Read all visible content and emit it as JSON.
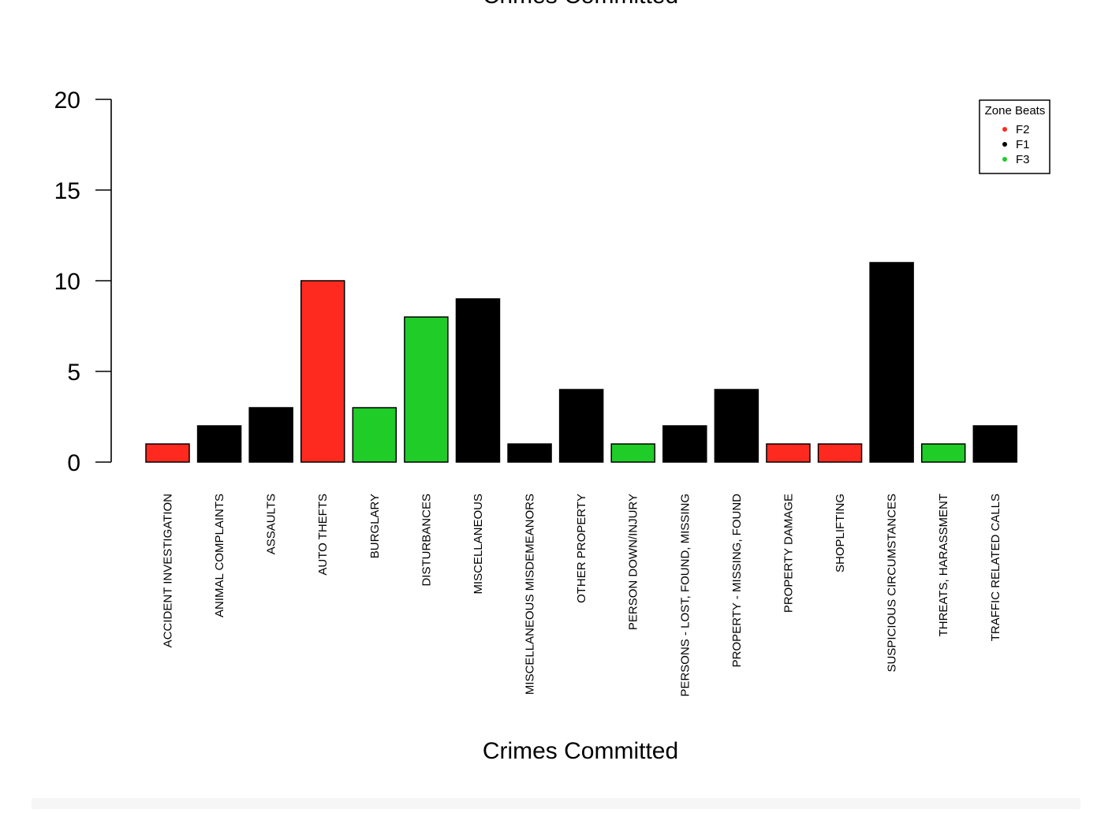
{
  "chart_data": {
    "type": "bar",
    "title": "Crimes Committed",
    "xlabel": "Crimes Committed",
    "ylabel": "",
    "ylim": [
      0,
      20
    ],
    "yticks": [
      "0",
      "5",
      "10",
      "15",
      "20"
    ],
    "categories": [
      "ACCIDENT INVESTIGATION",
      "ANIMAL COMPLAINTS",
      "ASSAULTS",
      "AUTO THEFTS",
      "BURGLARY",
      "DISTURBANCES",
      "MISCELLANEOUS",
      "MISCELLANEOUS MISDEMEANORS",
      "OTHER PROPERTY",
      "PERSON DOWN/INJURY",
      "PERSONS - LOST, FOUND, MISSING",
      "PROPERTY - MISSING, FOUND",
      "PROPERTY DAMAGE",
      "SHOPLIFTING",
      "SUSPICIOUS CIRCUMSTANCES",
      "THREATS, HARASSMENT",
      "TRAFFIC RELATED CALLS"
    ],
    "values": [
      1,
      2,
      3,
      10,
      3,
      8,
      9,
      1,
      4,
      1,
      2,
      4,
      1,
      1,
      11,
      1,
      2
    ],
    "zones": [
      "F2",
      "F1",
      "F1",
      "F2",
      "F3",
      "F3",
      "F1",
      "F1",
      "F1",
      "F3",
      "F1",
      "F1",
      "F2",
      "F2",
      "F1",
      "F3",
      "F1"
    ],
    "legend": {
      "title": "Zone Beats",
      "position": "top-right",
      "entries": [
        {
          "name": "F2",
          "color": "#ff2a1f"
        },
        {
          "name": "F1",
          "color": "#000000"
        },
        {
          "name": "F3",
          "color": "#1fcc28"
        }
      ]
    },
    "grid": false
  }
}
